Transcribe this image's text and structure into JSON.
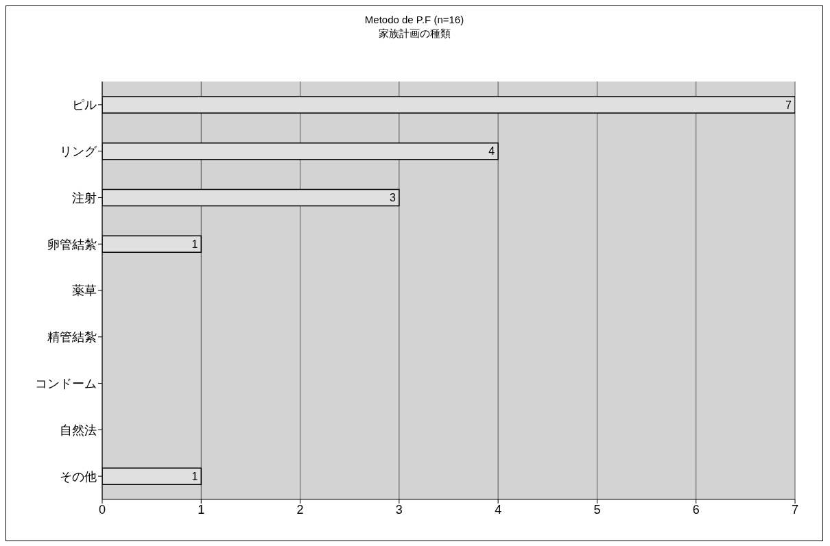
{
  "chart_data": {
    "type": "bar",
    "orientation": "horizontal",
    "title": "Metodo de P.F (n=16)",
    "subtitle": "家族計画の種類",
    "categories": [
      "ピル",
      "リング",
      "注射",
      "卵管結紮",
      "薬草",
      "精管結紮",
      "コンドーム",
      "自然法",
      "その他"
    ],
    "values": [
      7,
      4,
      3,
      1,
      0,
      0,
      0,
      0,
      1
    ],
    "value_labels": [
      "7",
      "4",
      "3",
      "1",
      null,
      null,
      null,
      null,
      "1"
    ],
    "color": "#e0e0e0",
    "xlim": [
      0,
      7
    ],
    "xticks": [
      0,
      1,
      2,
      3,
      4,
      5,
      6,
      7
    ],
    "grid": "x"
  }
}
